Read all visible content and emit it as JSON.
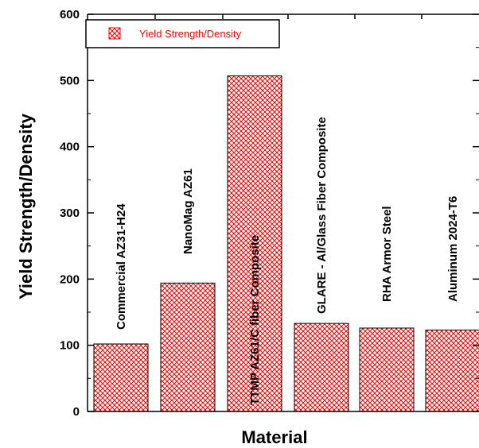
{
  "chart_data": {
    "type": "bar",
    "categories": [
      "Commercial AZ31-H24",
      "NanoMag AZ61",
      "TTMP AZ61/C fiber Composite",
      "GLARE - Al/Glass Fiber Composite",
      "RHA Armor Steel",
      "Aluminum 2024-T6"
    ],
    "series": [
      {
        "name": "Yield Strength/Density",
        "values": [
          102,
          194,
          507,
          133,
          126,
          123
        ]
      }
    ],
    "xlabel": "Material",
    "ylabel": "Yield Strength/Density",
    "ylim": [
      0,
      600
    ],
    "yticks": [
      "0",
      "100",
      "200",
      "300",
      "400",
      "500",
      "600"
    ],
    "legend": "top-left",
    "grid": false,
    "colors": {
      "bar_hatch": "#ff0000",
      "bar_fill": "#ffffff",
      "legend_text": "#ff0000",
      "axis": "#000000"
    }
  }
}
